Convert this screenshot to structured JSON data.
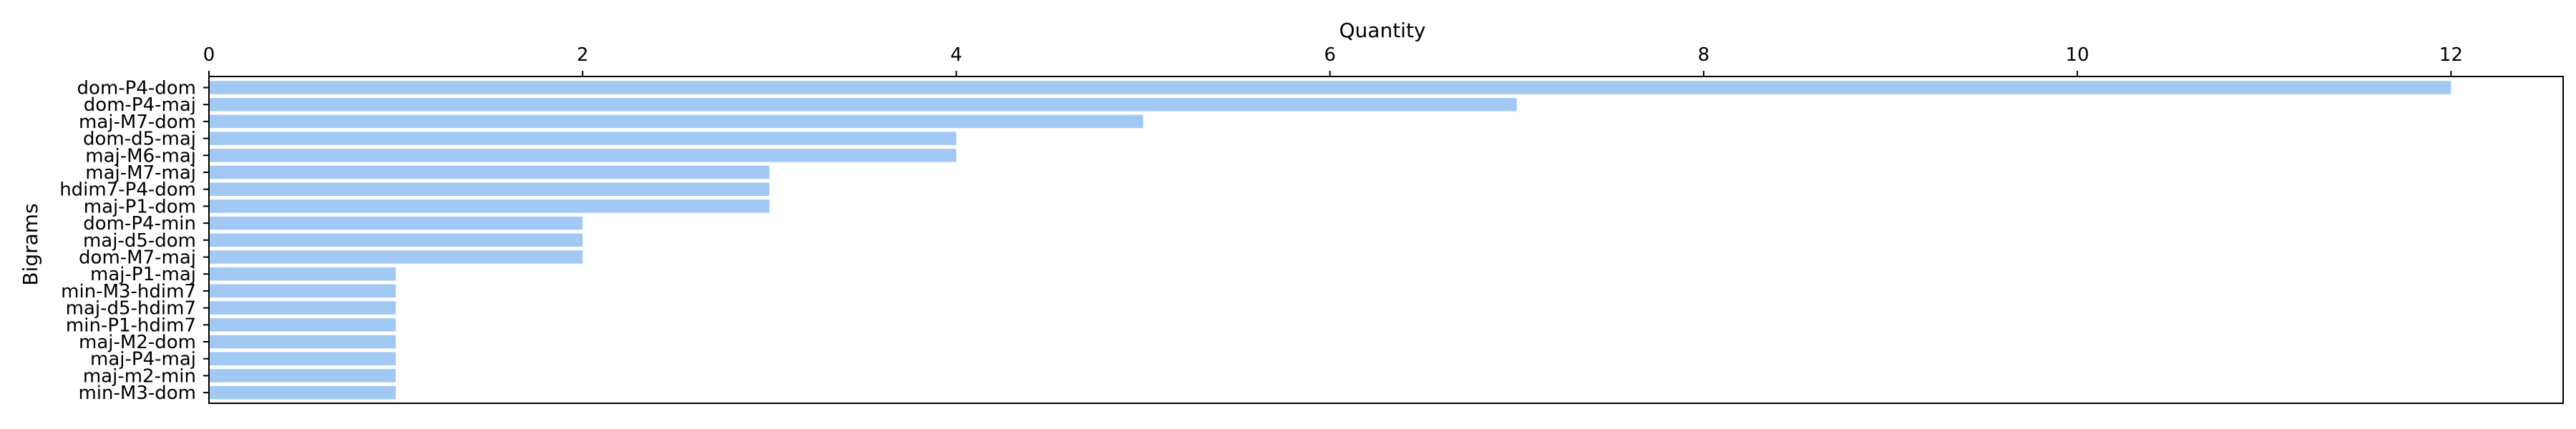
{
  "chart_data": {
    "type": "bar",
    "orientation": "horizontal",
    "xlabel": "Quantity",
    "ylabel": "Bigrams",
    "xlim": [
      0,
      12.6
    ],
    "xticks": [
      0,
      2,
      4,
      6,
      8,
      10,
      12
    ],
    "x_axis_position": "top",
    "grid": false,
    "bar_color": "#a1c9f4",
    "categories": [
      "dom-P4-dom",
      "dom-P4-maj",
      "maj-M7-dom",
      "dom-d5-maj",
      "maj-M6-maj",
      "maj-M7-maj",
      "hdim7-P4-dom",
      "maj-P1-dom",
      "dom-P4-min",
      "maj-d5-dom",
      "dom-M7-maj",
      "maj-P1-maj",
      "min-M3-hdim7",
      "maj-d5-hdim7",
      "min-P1-hdim7",
      "maj-M2-dom",
      "maj-P4-maj",
      "maj-m2-min",
      "min-M3-dom"
    ],
    "values": [
      12,
      7,
      5,
      4,
      4,
      3,
      3,
      3,
      2,
      2,
      2,
      1,
      1,
      1,
      1,
      1,
      1,
      1,
      1
    ]
  }
}
